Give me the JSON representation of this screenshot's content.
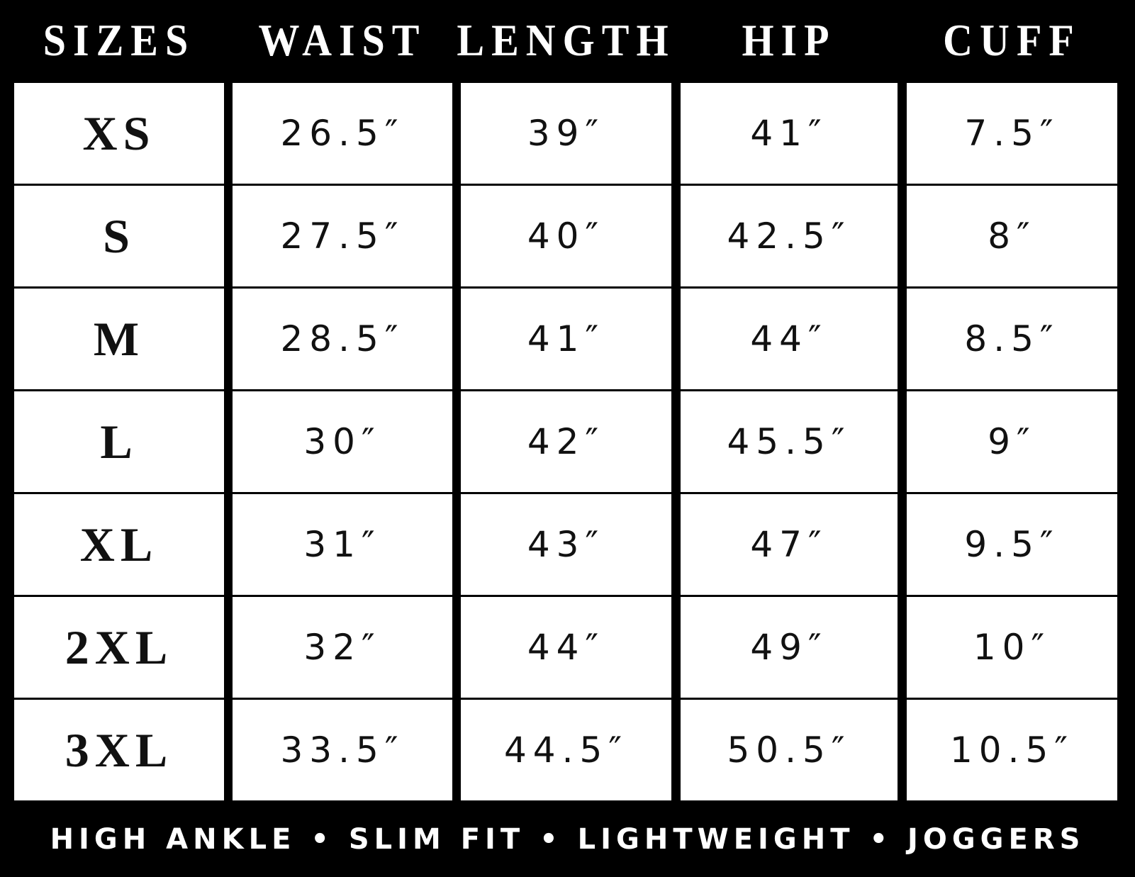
{
  "table": {
    "headers": [
      "SIZES",
      "WAIST",
      "LENGTH",
      "HIP",
      "CUFF"
    ],
    "rows": [
      [
        "XS",
        "26.5″",
        "39″",
        "41″",
        "7.5″"
      ],
      [
        "S",
        "27.5″",
        "40″",
        "42.5″",
        "8″"
      ],
      [
        "M",
        "28.5″",
        "41″",
        "44″",
        "8.5″"
      ],
      [
        "L",
        "30″",
        "42″",
        "45.5″",
        "9″"
      ],
      [
        "XL",
        "31″",
        "43″",
        "47″",
        "9.5″"
      ],
      [
        "2XL",
        "32″",
        "44″",
        "49″",
        "10″"
      ],
      [
        "3XL",
        "33.5″",
        "44.5″",
        "50.5″",
        "10.5″"
      ]
    ]
  },
  "footer": "HIGH ANKLE • SLIM FIT • LIGHTWEIGHT • JOGGERS"
}
